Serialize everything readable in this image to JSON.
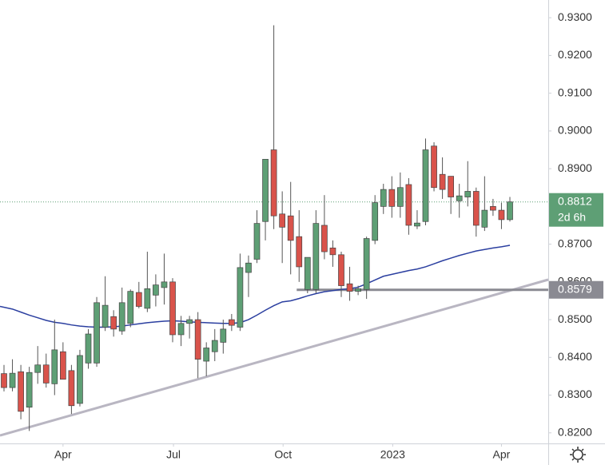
{
  "chart_data": {
    "type": "candlestick",
    "open": [
      0.8357,
      0.832,
      0.8362,
      0.8268,
      0.836,
      0.838,
      0.833,
      0.8415,
      0.8365,
      0.8278,
      0.8385,
      0.8385,
      0.848,
      0.8508,
      0.847,
      0.849,
      0.8572,
      0.853,
      0.8565,
      0.8585,
      0.86,
      0.846,
      0.849,
      0.85,
      0.839,
      0.8415,
      0.844,
      0.85,
      0.848,
      0.8625,
      0.866,
      0.876,
      0.895,
      0.878,
      0.8775,
      0.872,
      0.858,
      0.858,
      0.875,
      0.869,
      0.8672,
      0.8595,
      0.8575,
      0.858,
      0.871,
      0.88,
      0.8845,
      0.88,
      0.8858,
      0.8748,
      0.876,
      0.896,
      0.8885,
      0.888,
      0.8815,
      0.8825,
      0.884,
      0.8745,
      0.88,
      0.879,
      0.8765
    ],
    "high": [
      0.838,
      0.8395,
      0.838,
      0.8375,
      0.843,
      0.841,
      0.85,
      0.844,
      0.838,
      0.842,
      0.8475,
      0.856,
      0.8615,
      0.8525,
      0.8585,
      0.858,
      0.86,
      0.868,
      0.862,
      0.8675,
      0.861,
      0.851,
      0.851,
      0.852,
      0.844,
      0.8475,
      0.85,
      0.8515,
      0.8675,
      0.867,
      0.879,
      0.892,
      0.928,
      0.884,
      0.8865,
      0.879,
      0.8665,
      0.879,
      0.883,
      0.871,
      0.868,
      0.864,
      0.859,
      0.872,
      0.883,
      0.886,
      0.888,
      0.889,
      0.8875,
      0.879,
      0.898,
      0.897,
      0.893,
      0.888,
      0.886,
      0.892,
      0.885,
      0.888,
      0.882,
      0.881,
      0.8825
    ],
    "low": [
      0.831,
      0.831,
      0.8236,
      0.8205,
      0.833,
      0.832,
      0.83,
      0.8345,
      0.825,
      0.827,
      0.837,
      0.8375,
      0.847,
      0.8455,
      0.846,
      0.848,
      0.853,
      0.852,
      0.8535,
      0.854,
      0.844,
      0.843,
      0.845,
      0.8345,
      0.835,
      0.839,
      0.841,
      0.847,
      0.847,
      0.856,
      0.865,
      0.871,
      0.874,
      0.865,
      0.862,
      0.86,
      0.857,
      0.857,
      0.866,
      0.864,
      0.856,
      0.855,
      0.8565,
      0.8555,
      0.87,
      0.878,
      0.877,
      0.877,
      0.8725,
      0.874,
      0.875,
      0.884,
      0.882,
      0.878,
      0.877,
      0.88,
      0.872,
      0.8735,
      0.8775,
      0.874,
      0.876
    ],
    "close": [
      0.832,
      0.8358,
      0.8257,
      0.836,
      0.838,
      0.8332,
      0.842,
      0.8342,
      0.8272,
      0.8405,
      0.8462,
      0.8545,
      0.8538,
      0.8475,
      0.8545,
      0.8575,
      0.8535,
      0.8582,
      0.8592,
      0.86,
      0.846,
      0.849,
      0.85,
      0.8395,
      0.8425,
      0.8445,
      0.8475,
      0.8485,
      0.8638,
      0.865,
      0.8755,
      0.8925,
      0.8775,
      0.8745,
      0.871,
      0.864,
      0.8665,
      0.8755,
      0.868,
      0.8672,
      0.859,
      0.8575,
      0.8582,
      0.8715,
      0.881,
      0.8845,
      0.88,
      0.885,
      0.875,
      0.8756,
      0.895,
      0.885,
      0.8845,
      0.8825,
      0.8828,
      0.884,
      0.875,
      0.879,
      0.879,
      0.8765,
      0.8812
    ],
    "up_color": "#5e9f75",
    "down_color": "#d9534b",
    "ma": {
      "color": "#2b3fa0",
      "values": [
        0.8535,
        0.8528,
        0.852,
        0.8512,
        0.8505,
        0.8498,
        0.8493,
        0.849,
        0.8486,
        0.8483,
        0.8481,
        0.848,
        0.848,
        0.8481,
        0.8483,
        0.8486,
        0.8489,
        0.8492,
        0.8494,
        0.8496,
        0.8497,
        0.8496,
        0.8494,
        0.8493,
        0.8492,
        0.8491,
        0.849,
        0.849,
        0.8492,
        0.85,
        0.8512,
        0.8525,
        0.8537,
        0.8547,
        0.855,
        0.8556,
        0.8563,
        0.8569,
        0.8574,
        0.8577,
        0.858,
        0.8582,
        0.8586,
        0.8595,
        0.8605,
        0.8615,
        0.862,
        0.8625,
        0.863,
        0.8634,
        0.864,
        0.8648,
        0.8656,
        0.8663,
        0.867,
        0.8676,
        0.8682,
        0.8686,
        0.869,
        0.8693,
        0.8697
      ]
    },
    "trendline": {
      "color": "#b9b6c2",
      "values": [
        0.8193,
        0.8606
      ]
    },
    "support": {
      "value": 0.8579,
      "color": "#8a8a92"
    },
    "last_price": {
      "value": 0.8812,
      "countdown": "2d 6h",
      "color": "#5e9f75"
    },
    "ylim": [
      0.8172,
      0.9347
    ],
    "yticks": [
      {
        "value": 0.82,
        "label": "0.8200"
      },
      {
        "value": 0.83,
        "label": "0.8300"
      },
      {
        "value": 0.84,
        "label": "0.8400"
      },
      {
        "value": 0.85,
        "label": "0.8500"
      },
      {
        "value": 0.86,
        "label": "0.8600"
      },
      {
        "value": 0.87,
        "label": "0.8700"
      },
      {
        "value": 0.88,
        "label": "0.8800"
      },
      {
        "value": 0.89,
        "label": "0.8900"
      },
      {
        "value": 0.9,
        "label": "0.9000"
      },
      {
        "value": 0.91,
        "label": "0.9100"
      },
      {
        "value": 0.92,
        "label": "0.9200"
      },
      {
        "value": 0.93,
        "label": "0.9300"
      }
    ],
    "xticks": [
      {
        "value": 7,
        "label": "Apr"
      },
      {
        "value": 20.1,
        "label": "Jul"
      },
      {
        "value": 33.1,
        "label": "Oct"
      },
      {
        "value": 46.1,
        "label": "2023"
      },
      {
        "value": 59,
        "label": "Apr"
      }
    ]
  }
}
